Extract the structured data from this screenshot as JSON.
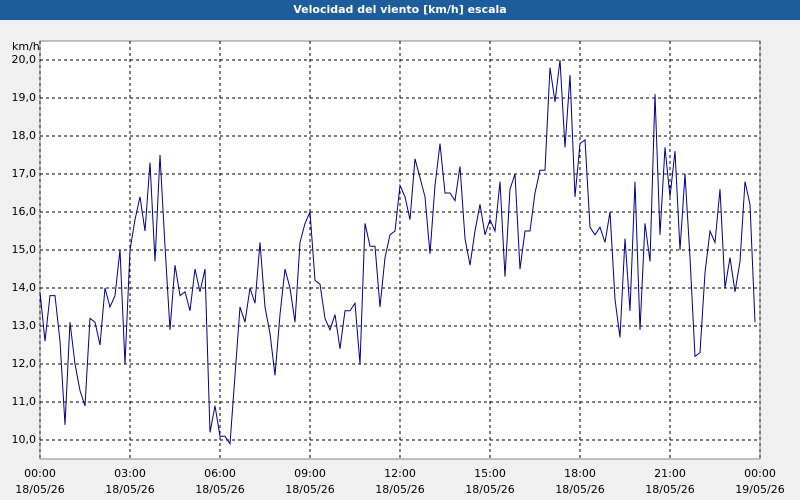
{
  "chart_data": {
    "type": "line",
    "title": "Velocidad del viento [km/h] escala",
    "ylabel": "km/h",
    "x": [
      0,
      10,
      20,
      30,
      40,
      50,
      60,
      70,
      80,
      90,
      100,
      110,
      120,
      130,
      140,
      150,
      160,
      170,
      180,
      190,
      200,
      210,
      220,
      230,
      240,
      250,
      260,
      270,
      280,
      290,
      300,
      310,
      320,
      330,
      340,
      350,
      360,
      370,
      380,
      390,
      400,
      410,
      420,
      430,
      440,
      450,
      460,
      470,
      480,
      490,
      500,
      510,
      520,
      530,
      540,
      550,
      560,
      570,
      580,
      590,
      600,
      610,
      620,
      630,
      640,
      650,
      660,
      670,
      680,
      690,
      700,
      710,
      720,
      730,
      740,
      750,
      760,
      770,
      780,
      790,
      800,
      810,
      820,
      830,
      840,
      850,
      860,
      870,
      880,
      890,
      900,
      910,
      920,
      930,
      940,
      950,
      960,
      970,
      980,
      990,
      1000,
      1010,
      1020,
      1030,
      1040,
      1050,
      1060,
      1070,
      1080,
      1090,
      1100,
      1110,
      1120,
      1130,
      1140,
      1150,
      1160,
      1170,
      1180,
      1190,
      1200,
      1210,
      1220,
      1230,
      1240,
      1250,
      1260,
      1270,
      1280,
      1290,
      1300,
      1310,
      1320,
      1330,
      1340,
      1350,
      1360,
      1370,
      1380,
      1390,
      1400,
      1410,
      1420,
      1430
    ],
    "series": [
      {
        "name": "Velocidad del viento",
        "color": "#00008b",
        "values": [
          13.9,
          12.6,
          13.8,
          13.8,
          12.6,
          10.4,
          13.1,
          12.0,
          11.3,
          10.9,
          13.2,
          13.1,
          12.5,
          14.0,
          13.5,
          13.8,
          15.0,
          12.0,
          15.0,
          15.8,
          16.4,
          15.5,
          17.3,
          14.7,
          17.5,
          15.1,
          12.9,
          14.6,
          13.8,
          13.9,
          13.4,
          14.5,
          13.9,
          14.5,
          10.2,
          10.9,
          10.1,
          10.1,
          9.9,
          11.7,
          13.5,
          13.1,
          14.0,
          13.6,
          15.2,
          13.5,
          12.8,
          11.7,
          13.3,
          14.5,
          14.0,
          13.1,
          15.2,
          15.7,
          16.0,
          14.2,
          14.1,
          13.2,
          12.9,
          13.3,
          12.4,
          13.4,
          13.4,
          13.6,
          12.0,
          15.7,
          15.1,
          15.1,
          13.5,
          14.8,
          15.4,
          15.5,
          16.7,
          16.4,
          15.8,
          17.4,
          16.9,
          16.4,
          14.9,
          16.7,
          17.8,
          16.5,
          16.5,
          16.3,
          17.2,
          15.3,
          14.6,
          15.5,
          16.2,
          15.4,
          15.8,
          15.5,
          16.8,
          14.3,
          16.6,
          17.0,
          14.5,
          15.5,
          15.5,
          16.5,
          17.1,
          17.1,
          19.8,
          18.9,
          20.0,
          17.7,
          19.6,
          16.4,
          17.8,
          17.9,
          15.6,
          15.4,
          15.6,
          15.2,
          16.0,
          13.7,
          12.7,
          15.3,
          13.4,
          16.8,
          12.9,
          15.7,
          14.7,
          19.1,
          15.4,
          17.7,
          16.4,
          17.6,
          15.0,
          17.0,
          14.8,
          12.2,
          12.3,
          14.4,
          15.5,
          15.2,
          16.6,
          14.0,
          14.8,
          13.9,
          14.7,
          16.8,
          16.2,
          13.1
        ]
      }
    ],
    "xlim": [
      0,
      1440
    ],
    "xticks": [
      {
        "value": 0,
        "label": "00:00"
      },
      {
        "value": 180,
        "label": "03:00"
      },
      {
        "value": 360,
        "label": "06:00"
      },
      {
        "value": 540,
        "label": "09:00"
      },
      {
        "value": 720,
        "label": "12:00"
      },
      {
        "value": 900,
        "label": "15:00"
      },
      {
        "value": 1080,
        "label": "18:00"
      },
      {
        "value": 1260,
        "label": "21:00"
      },
      {
        "value": 1440,
        "label": "00:00"
      }
    ],
    "xtick_dates": [
      "18/05/26",
      "18/05/26",
      "18/05/26",
      "18/05/26",
      "18/05/26",
      "18/05/26",
      "18/05/26",
      "18/05/26",
      "19/05/26"
    ],
    "ylim": [
      9.5,
      20.5
    ],
    "yticks": [
      {
        "value": 10,
        "label": "10,0"
      },
      {
        "value": 11,
        "label": "11,0"
      },
      {
        "value": 12,
        "label": "12,0"
      },
      {
        "value": 13,
        "label": "13,0"
      },
      {
        "value": 14,
        "label": "14,0"
      },
      {
        "value": 15,
        "label": "15,0"
      },
      {
        "value": 16,
        "label": "16,0"
      },
      {
        "value": 17,
        "label": "17,0"
      },
      {
        "value": 18,
        "label": "18,0"
      },
      {
        "value": 19,
        "label": "19,0"
      },
      {
        "value": 20,
        "label": "20,0"
      }
    ],
    "grid": true
  }
}
